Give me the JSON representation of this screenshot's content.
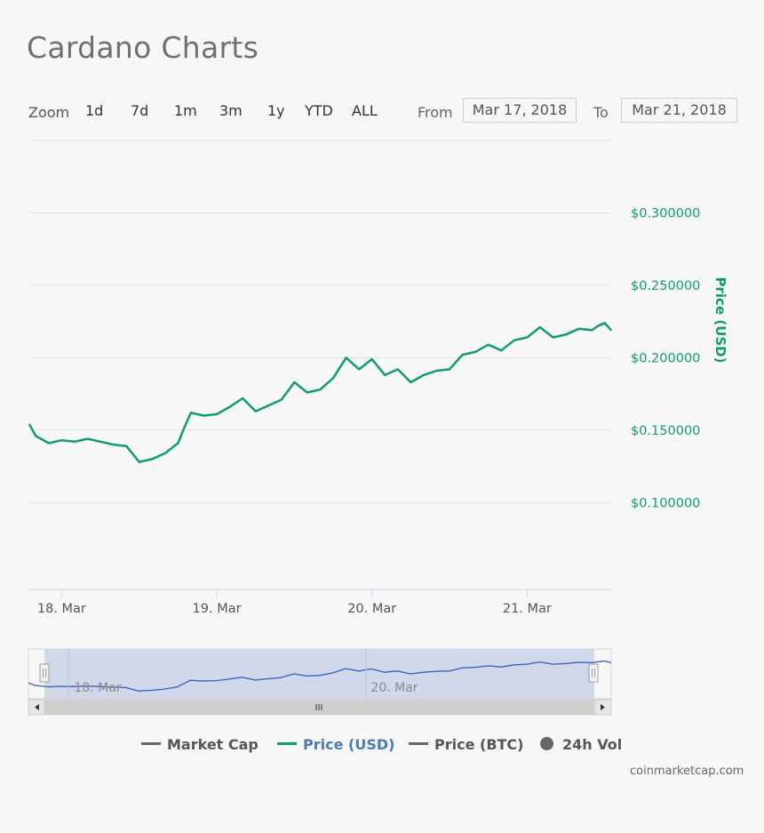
{
  "title": "Cardano Charts",
  "zoom": {
    "label": "Zoom",
    "buttons": [
      "1d",
      "7d",
      "1m",
      "3m",
      "1y",
      "YTD",
      "ALL"
    ]
  },
  "range": {
    "from_label": "From",
    "from_value": "Mar 17, 2018",
    "to_label": "To",
    "to_value": "Mar 21, 2018"
  },
  "legend": {
    "items": [
      {
        "label": "Market Cap",
        "color": "#666666",
        "style": "line"
      },
      {
        "label": "Price (USD)",
        "color": "#2f7ed8",
        "line_color": "#0e9d6b",
        "style": "line"
      },
      {
        "label": "Price (BTC)",
        "color": "#666666",
        "style": "line"
      },
      {
        "label": "24h Vol",
        "color": "#555555",
        "style": "dot"
      }
    ]
  },
  "credit": "coinmarketcap.com",
  "colors": {
    "price_line": "#0e9d6b",
    "axis_text_green": "#0e9d6b",
    "navigator_fill": "#c9d2e6",
    "navigator_line": "#3a59c4",
    "grid": "#e2e2e2"
  },
  "chart_data": {
    "type": "line",
    "title": "",
    "xlabel": "",
    "ylabel": "Price (USD)",
    "x_tick_labels": [
      "18. Mar",
      "19. Mar",
      "20. Mar",
      "21. Mar"
    ],
    "x_tick_dates": [
      "2018-03-18",
      "2018-03-19",
      "2018-03-20",
      "2018-03-21"
    ],
    "y_tick_labels": [
      "$0.100000",
      "$0.150000",
      "$0.200000",
      "$0.250000",
      "$0.300000"
    ],
    "y_ticks": [
      0.1,
      0.15,
      0.2,
      0.25,
      0.3
    ],
    "y_axis_position": "right",
    "ylim": [
      0.04,
      0.35
    ],
    "xlim": [
      "2018-03-17 19:00",
      "2018-03-21 13:00"
    ],
    "grid": true,
    "legend_position": "bottom",
    "navigator_labels": [
      "18. Mar",
      "20. Mar"
    ],
    "series": [
      {
        "name": "Price (USD)",
        "x": [
          "2018-03-17 19:00",
          "2018-03-17 20:00",
          "2018-03-17 22:00",
          "2018-03-18 00:00",
          "2018-03-18 02:00",
          "2018-03-18 04:00",
          "2018-03-18 06:00",
          "2018-03-18 08:00",
          "2018-03-18 10:00",
          "2018-03-18 12:00",
          "2018-03-18 14:00",
          "2018-03-18 16:00",
          "2018-03-18 18:00",
          "2018-03-18 19:00",
          "2018-03-18 20:00",
          "2018-03-18 22:00",
          "2018-03-19 00:00",
          "2018-03-19 02:00",
          "2018-03-19 04:00",
          "2018-03-19 06:00",
          "2018-03-19 08:00",
          "2018-03-19 10:00",
          "2018-03-19 12:00",
          "2018-03-19 14:00",
          "2018-03-19 16:00",
          "2018-03-19 18:00",
          "2018-03-19 20:00",
          "2018-03-19 22:00",
          "2018-03-20 00:00",
          "2018-03-20 02:00",
          "2018-03-20 04:00",
          "2018-03-20 06:00",
          "2018-03-20 08:00",
          "2018-03-20 10:00",
          "2018-03-20 12:00",
          "2018-03-20 14:00",
          "2018-03-20 16:00",
          "2018-03-20 18:00",
          "2018-03-20 20:00",
          "2018-03-20 22:00",
          "2018-03-21 00:00",
          "2018-03-21 02:00",
          "2018-03-21 04:00",
          "2018-03-21 06:00",
          "2018-03-21 08:00",
          "2018-03-21 10:00",
          "2018-03-21 11:00",
          "2018-03-21 12:00",
          "2018-03-21 13:00"
        ],
        "values": [
          0.154,
          0.146,
          0.141,
          0.143,
          0.142,
          0.144,
          0.142,
          0.14,
          0.139,
          0.128,
          0.13,
          0.134,
          0.141,
          0.152,
          0.162,
          0.16,
          0.161,
          0.166,
          0.172,
          0.163,
          0.167,
          0.171,
          0.183,
          0.176,
          0.178,
          0.186,
          0.2,
          0.192,
          0.199,
          0.188,
          0.192,
          0.183,
          0.188,
          0.191,
          0.192,
          0.202,
          0.204,
          0.209,
          0.205,
          0.212,
          0.214,
          0.221,
          0.214,
          0.216,
          0.22,
          0.219,
          0.222,
          0.224,
          0.219
        ]
      }
    ]
  }
}
